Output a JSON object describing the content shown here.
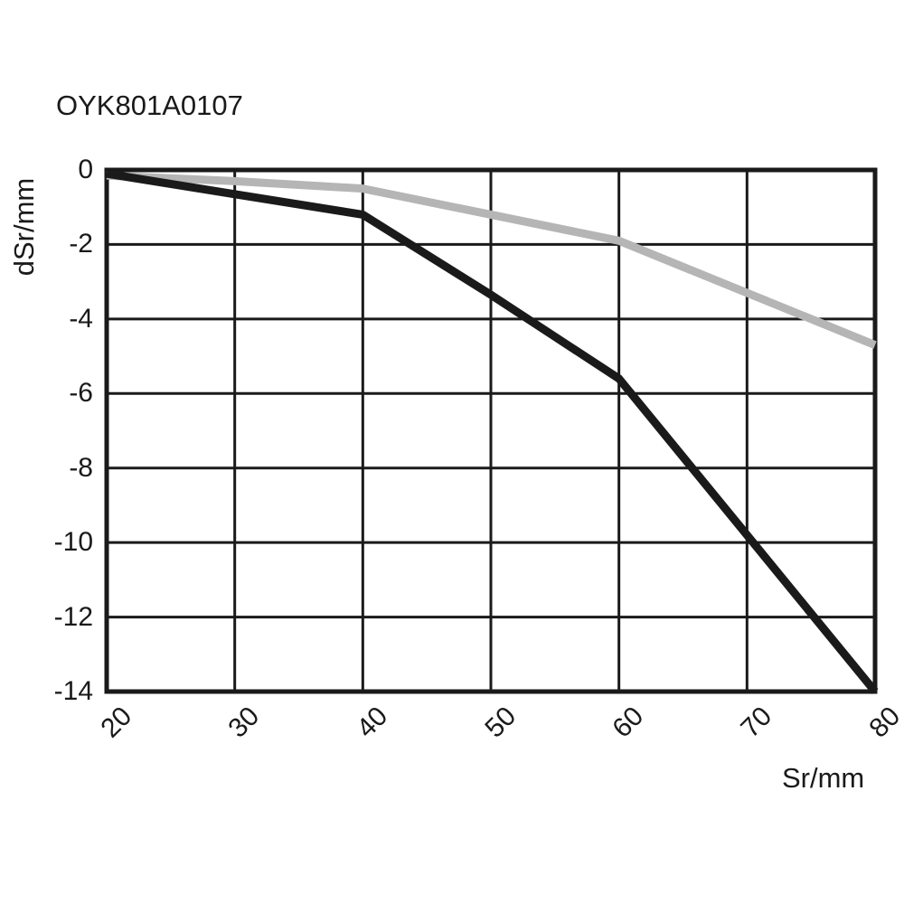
{
  "page": {
    "background": "#ffffff"
  },
  "colors": {
    "axis": "#1a1a1a",
    "text": "#1a1a1a",
    "series_black": "#1a1a1a",
    "series_gray": "#b5b5b5"
  },
  "chart_data": {
    "type": "line",
    "title": "OYK801A0107",
    "xlabel": "Sr/mm",
    "ylabel": "dSr/mm",
    "xlim": [
      20,
      80
    ],
    "ylim": [
      -14,
      0
    ],
    "x_ticks": [
      20,
      30,
      40,
      50,
      60,
      70,
      80
    ],
    "y_ticks": [
      0,
      -2,
      -4,
      -6,
      -8,
      -10,
      -12,
      -14
    ],
    "grid": true,
    "legend": "none",
    "x": [
      20,
      30,
      40,
      50,
      60,
      70,
      80
    ],
    "series": [
      {
        "name": "black-curve",
        "color": "#1a1a1a",
        "width": 9,
        "x": [
          20,
          30,
          40,
          50,
          60,
          70,
          80
        ],
        "values": [
          -0.1,
          -0.65,
          -1.2,
          -3.35,
          -5.6,
          -9.8,
          -14
        ]
      },
      {
        "name": "gray-curve",
        "color": "#b5b5b5",
        "width": 9,
        "x": [
          20,
          30,
          40,
          50,
          60,
          70,
          80
        ],
        "values": [
          -0.15,
          -0.3,
          -0.5,
          -1.2,
          -1.9,
          -3.3,
          -4.7
        ]
      }
    ]
  }
}
